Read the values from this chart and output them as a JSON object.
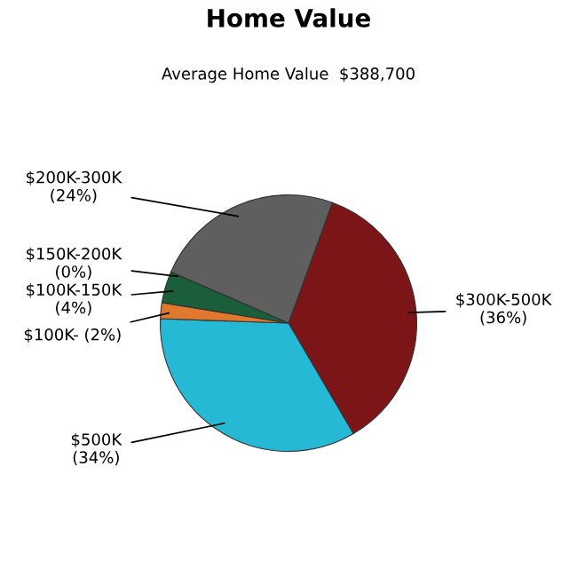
{
  "chart_data": {
    "type": "pie",
    "title": "Home Value",
    "subtitle": "Average Home Value  $388,700",
    "categories": [
      "$300K-500K",
      "$500K",
      "$100K-",
      "$100K-150K",
      "$150K-200K",
      "$200K-300K"
    ],
    "values": [
      36,
      34,
      2,
      4,
      0,
      24
    ],
    "colors": [
      "#7b1518",
      "#25b9d6",
      "#e0782e",
      "#1b5e3b",
      "#2e6b3e",
      "#5f5f5f"
    ],
    "value_labels": [
      "(36%)",
      "(34%)",
      "(2%)",
      "(4%)",
      "(0%)",
      "(24%)"
    ],
    "legend": false
  }
}
